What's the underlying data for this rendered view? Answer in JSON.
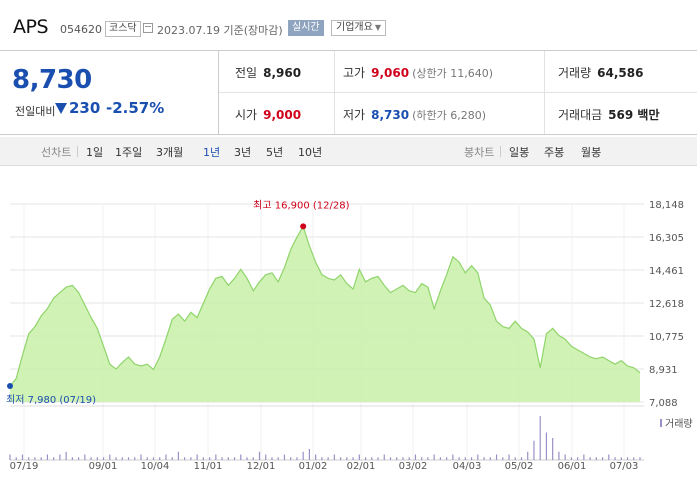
{
  "header": {
    "name": "APS",
    "code": "054620",
    "market": "코스닥",
    "base_date": "2023.07.19 기준(장마감)",
    "realtime_label": "실시간",
    "company_label": "기업개요"
  },
  "price": {
    "current": "8,730",
    "change_label": "전일대비",
    "change": "230",
    "change_rate": "-2.57%"
  },
  "stats": {
    "prev_close": {
      "label": "전일",
      "value": "8,960"
    },
    "high": {
      "label": "고가",
      "value": "9,060",
      "sub": "(상한가 11,640)"
    },
    "volume": {
      "label": "거래량",
      "value": "64,586"
    },
    "open": {
      "label": "시가",
      "value": "9,000"
    },
    "low": {
      "label": "저가",
      "value": "8,730",
      "sub": "(하한가 6,280)"
    },
    "trade_amount": {
      "label": "거래대금",
      "value": "569 백만"
    }
  },
  "period_bar": {
    "line_label": "선차트",
    "periods": [
      "1일",
      "1주일",
      "3개월",
      "1년",
      "3년",
      "5년",
      "10년"
    ],
    "active_period": "1년",
    "candle_label": "봉차트",
    "candles": [
      "일봉",
      "주봉",
      "월봉"
    ]
  },
  "colors": {
    "accent_blue": "#1a4fb0",
    "up_red": "#d0021b",
    "area_fill": "#c8f0a8",
    "area_line": "#8fd46a",
    "volume_bar": "#9c8fc4"
  },
  "chart_data": {
    "type": "area",
    "y_ticks": [
      "18,148",
      "16,305",
      "14,461",
      "12,618",
      "10,775",
      "8,931",
      "7,088"
    ],
    "ylim": [
      7088,
      18148
    ],
    "x_ticks": [
      "07/19",
      "09/01",
      "10/04",
      "11/01",
      "12/01",
      "01/02",
      "02/01",
      "03/02",
      "04/03",
      "05/02",
      "06/01",
      "07/03"
    ],
    "max_annotation": "최고 16,900 (12/28)",
    "min_annotation": "최저 7,980 (07/19)",
    "volume_label": "거래량",
    "series": [
      {
        "values": [
          7980,
          8400,
          9700,
          10900,
          11300,
          11900,
          12300,
          12900,
          13200,
          13500,
          13600,
          13200,
          12500,
          11800,
          11200,
          10200,
          9200,
          8930,
          9300,
          9600,
          9200,
          9100,
          9200,
          8900,
          9600,
          10600,
          11700,
          12000,
          11600,
          12100,
          11800,
          12600,
          13400,
          14000,
          14100,
          13600,
          14000,
          14500,
          14000,
          13300,
          13800,
          14200,
          14300,
          13800,
          14600,
          15600,
          16300,
          16900,
          15800,
          14900,
          14200,
          14000,
          13900,
          14200,
          13700,
          13400,
          14500,
          13800,
          14000,
          14100,
          13600,
          13200,
          13400,
          13600,
          13300,
          13200,
          13700,
          13500,
          12300,
          13300,
          14200,
          15200,
          14900,
          14300,
          14700,
          14300,
          12900,
          12500,
          11600,
          11300,
          11200,
          11600,
          11200,
          11000,
          10600,
          8990,
          10900,
          11200,
          10800,
          10600,
          10200,
          10000,
          9800,
          9600,
          9500,
          9600,
          9400,
          9200,
          9400,
          9100,
          9000,
          8730
        ]
      }
    ],
    "volume": [
      2,
      1,
      2,
      1,
      1,
      1,
      2,
      1,
      2,
      3,
      1,
      1,
      2,
      1,
      1,
      1,
      2,
      1,
      1,
      1,
      1,
      2,
      1,
      1,
      1,
      2,
      1,
      3,
      1,
      1,
      2,
      1,
      1,
      2,
      1,
      1,
      1,
      2,
      1,
      1,
      3,
      2,
      1,
      1,
      2,
      1,
      1,
      3,
      4,
      2,
      1,
      1,
      2,
      1,
      1,
      1,
      2,
      1,
      1,
      1,
      2,
      1,
      1,
      1,
      1,
      2,
      1,
      1,
      2,
      1,
      1,
      2,
      1,
      1,
      1,
      2,
      1,
      1,
      2,
      1,
      2,
      1,
      1,
      3,
      7,
      16,
      10,
      8,
      3,
      2,
      1,
      1,
      2,
      1,
      1,
      1,
      2,
      1,
      1,
      1,
      1,
      1
    ]
  }
}
